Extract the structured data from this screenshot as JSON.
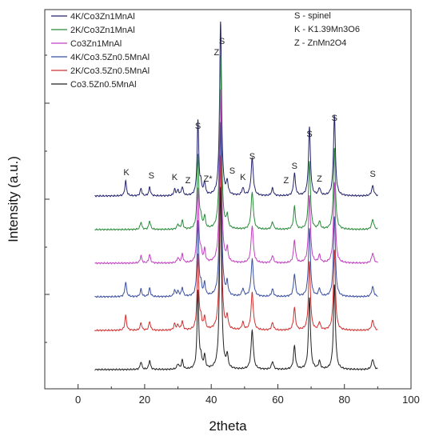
{
  "chart_data": {
    "type": "line",
    "title": "",
    "xlabel": "2theta",
    "ylabel": "Intensity (a.u.)",
    "xlim": [
      -10,
      100
    ],
    "x_ticks": [
      0,
      20,
      40,
      60,
      80,
      100
    ],
    "x_tick_labels": [
      "0",
      "20",
      "40",
      "60",
      "80",
      "100"
    ],
    "grid": false,
    "legend_position": "top-left",
    "series": [
      {
        "name": "4K/Co3Zn1MnAl",
        "color": "#23236e",
        "k_peaks": true
      },
      {
        "name": "2K/Co3Zn1MnAl",
        "color": "#2a8a3a",
        "k_peaks": false
      },
      {
        "name": "Co3Zn1MnAl",
        "color": "#c040c0",
        "k_peaks": false
      },
      {
        "name": "4K/Co3.5Zn0.5MnAl",
        "color": "#3a4fa0",
        "k_peaks": true
      },
      {
        "name": "2K/Co3.5Zn0.5MnAl",
        "color": "#d03030",
        "k_peaks": true
      },
      {
        "name": "Co3.5Zn0.5MnAl",
        "color": "#222222",
        "k_peaks": false
      }
    ],
    "peaks": [
      {
        "x": 18.9,
        "h": 6,
        "w": 0.3,
        "type": "S"
      },
      {
        "x": 21.5,
        "h": 7,
        "w": 0.3,
        "type": "S"
      },
      {
        "x": 30.0,
        "h": 4,
        "w": 0.35,
        "type": "Z"
      },
      {
        "x": 31.3,
        "h": 7,
        "w": 0.3,
        "type": "S"
      },
      {
        "x": 36.0,
        "h": 60,
        "w": 0.3,
        "type": "S"
      },
      {
        "x": 36.9,
        "h": 8,
        "w": 0.3,
        "type": "S"
      },
      {
        "x": 38.0,
        "h": 10,
        "w": 0.3,
        "type": "Z"
      },
      {
        "x": 42.8,
        "h": 140,
        "w": 0.35,
        "type": "S"
      },
      {
        "x": 44.8,
        "h": 10,
        "w": 0.3,
        "type": "S"
      },
      {
        "x": 52.3,
        "h": 30,
        "w": 0.4,
        "type": "S"
      },
      {
        "x": 58.4,
        "h": 6,
        "w": 0.35,
        "type": "Z"
      },
      {
        "x": 65.0,
        "h": 18,
        "w": 0.35,
        "type": "S"
      },
      {
        "x": 69.5,
        "h": 55,
        "w": 0.35,
        "type": "S"
      },
      {
        "x": 72.5,
        "h": 6,
        "w": 0.35,
        "type": "Z"
      },
      {
        "x": 77.0,
        "h": 65,
        "w": 0.35,
        "type": "S"
      },
      {
        "x": 88.5,
        "h": 8,
        "w": 0.4,
        "type": "S"
      }
    ],
    "k_peaks": [
      {
        "x": 14.3,
        "h": 12,
        "w": 0.3
      },
      {
        "x": 29.0,
        "h": 5,
        "w": 0.3
      },
      {
        "x": 49.5,
        "h": 6,
        "w": 0.35
      }
    ],
    "peak_labels": [
      {
        "text": "K",
        "x": 14.5,
        "y_offset": 18
      },
      {
        "text": "S",
        "x": 22.0,
        "y_offset": 14
      },
      {
        "text": "K",
        "x": 29.0,
        "y_offset": 12
      },
      {
        "text": "Z",
        "x": 33.0,
        "y_offset": 8
      },
      {
        "text": "S",
        "x": 36.0,
        "y_offset": 76
      },
      {
        "text": "Z*",
        "x": 39.0,
        "y_offset": 10
      },
      {
        "text": "Z",
        "x": 41.6,
        "y_offset": 168
      },
      {
        "text": "S",
        "x": 43.2,
        "y_offset": 182
      },
      {
        "text": "S",
        "x": 46.3,
        "y_offset": 20
      },
      {
        "text": "K",
        "x": 49.5,
        "y_offset": 12
      },
      {
        "text": "S",
        "x": 52.3,
        "y_offset": 38
      },
      {
        "text": "Z",
        "x": 62.5,
        "y_offset": 8
      },
      {
        "text": "S",
        "x": 65.0,
        "y_offset": 26
      },
      {
        "text": "S",
        "x": 69.5,
        "y_offset": 66
      },
      {
        "text": "Z",
        "x": 72.5,
        "y_offset": 10
      },
      {
        "text": "S",
        "x": 77.0,
        "y_offset": 86
      },
      {
        "text": "S",
        "x": 88.5,
        "y_offset": 16
      }
    ]
  },
  "key": [
    {
      "text": "S - spinel"
    },
    {
      "text": "K - K1.39Mn3O6"
    },
    {
      "text": "Z - ZnMn2O4"
    }
  ]
}
